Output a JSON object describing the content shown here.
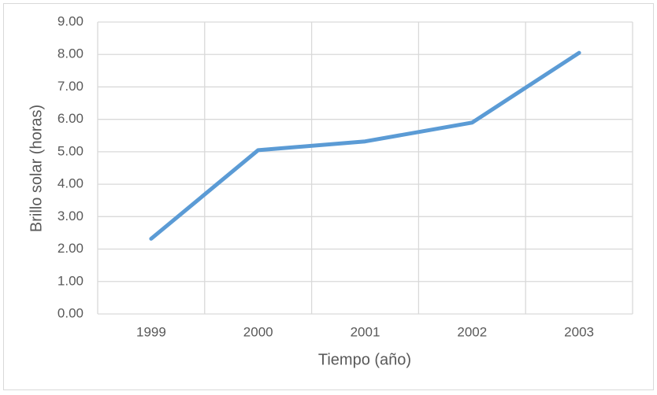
{
  "chart_data": {
    "type": "line",
    "x_label": "Tiempo (año)",
    "y_label": "Brillo solar (horas)",
    "categories": [
      "1999",
      "2000",
      "2001",
      "2002",
      "2003"
    ],
    "series": [
      {
        "name": "Brillo solar",
        "color": "#5b9bd5",
        "values": [
          2.32,
          5.05,
          5.32,
          5.9,
          8.05
        ]
      }
    ],
    "ylim": [
      0,
      9
    ],
    "yticks": [
      {
        "value": 0,
        "label": "0.00"
      },
      {
        "value": 1,
        "label": "1.00"
      },
      {
        "value": 2,
        "label": "2.00"
      },
      {
        "value": 3,
        "label": "3.00"
      },
      {
        "value": 4,
        "label": "4.00"
      },
      {
        "value": 5,
        "label": "5.00"
      },
      {
        "value": 6,
        "label": "6.00"
      },
      {
        "value": 7,
        "label": "7.00"
      },
      {
        "value": 8,
        "label": "8.00"
      },
      {
        "value": 9,
        "label": "9.00"
      }
    ],
    "grid": true,
    "legend": false
  }
}
